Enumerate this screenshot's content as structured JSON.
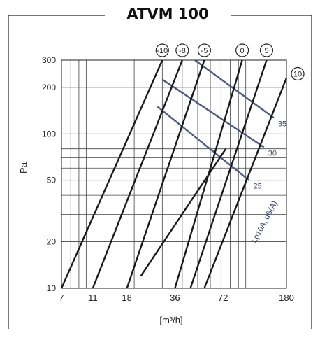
{
  "title": "ATVM 100",
  "chart_data": {
    "type": "line",
    "title": "ATVM 100",
    "xlabel": "[m³/h]",
    "ylabel": "Pa",
    "x_scale": "log",
    "y_scale": "log",
    "xlim": [
      7,
      180
    ],
    "ylim": [
      10,
      300
    ],
    "x_ticks": [
      7,
      11,
      18,
      36,
      72,
      180
    ],
    "y_ticks": [
      10,
      20,
      50,
      100,
      200,
      300
    ],
    "grid": true,
    "series": [
      {
        "name": "-10",
        "points": [
          [
            7,
            10
          ],
          [
            30,
            300
          ]
        ]
      },
      {
        "name": "-8",
        "points": [
          [
            11,
            10
          ],
          [
            40,
            300
          ]
        ]
      },
      {
        "name": "-5",
        "points": [
          [
            18,
            10
          ],
          [
            55,
            300
          ]
        ]
      },
      {
        "name": "0",
        "points": [
          [
            36,
            10
          ],
          [
            95,
            300
          ]
        ]
      },
      {
        "name": "5",
        "points": [
          [
            45,
            10
          ],
          [
            135,
            300
          ]
        ]
      },
      {
        "name": "10",
        "points": [
          [
            55,
            10
          ],
          [
            180,
            230
          ]
        ]
      },
      {
        "name": "",
        "points": [
          [
            22,
            12
          ],
          [
            75,
            80
          ]
        ]
      }
    ],
    "sound_lines": {
      "label": "Lp10A, dB(A)",
      "series": [
        {
          "name": "25",
          "points": [
            [
              28,
              150
            ],
            [
              105,
              50
            ]
          ]
        },
        {
          "name": "30",
          "points": [
            [
              30,
              225
            ],
            [
              130,
              82
            ]
          ]
        },
        {
          "name": "35",
          "points": [
            [
              48,
              300
            ],
            [
              150,
              127
            ]
          ]
        }
      ]
    }
  }
}
